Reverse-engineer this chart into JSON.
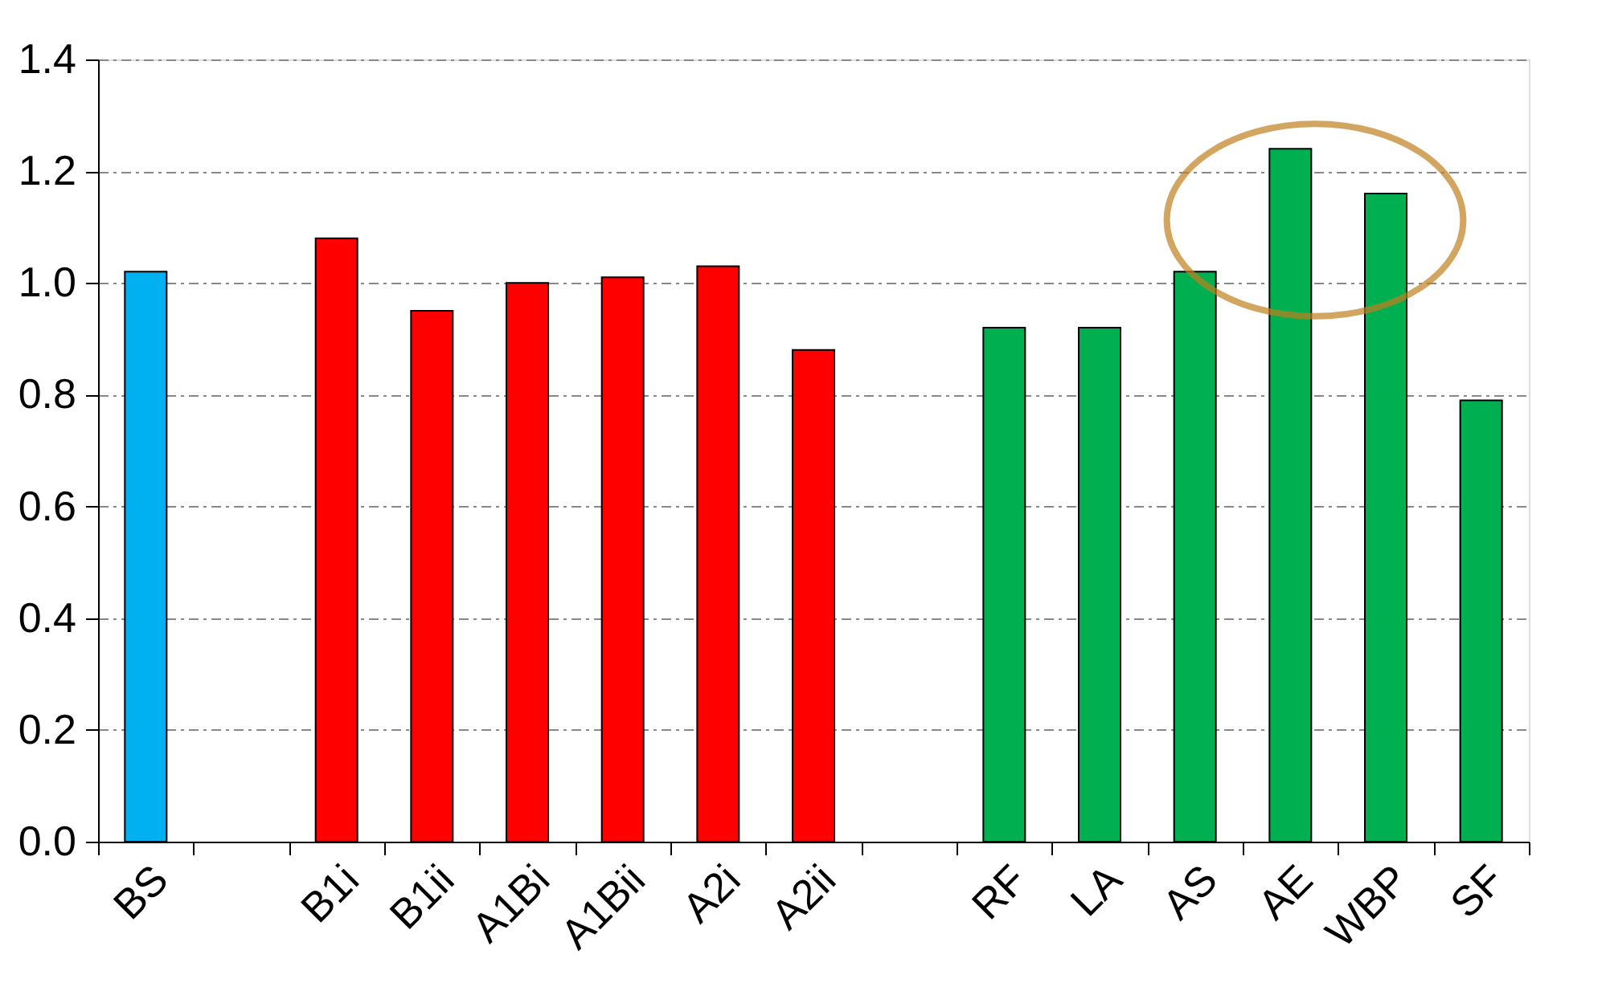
{
  "chart_data": {
    "type": "bar",
    "categories": [
      "BS",
      null,
      "B1i",
      "B1ii",
      "A1Bi",
      "A1Bii",
      "A2i",
      "A2ii",
      null,
      "RF",
      "LA",
      "AS",
      "AE",
      "WBP",
      "SF"
    ],
    "values": [
      1.02,
      null,
      1.08,
      0.95,
      1.0,
      1.01,
      1.03,
      0.88,
      null,
      0.92,
      0.92,
      1.02,
      1.24,
      1.16,
      0.79
    ],
    "colors": [
      "#00b0f0",
      null,
      "#ff0000",
      "#ff0000",
      "#ff0000",
      "#ff0000",
      "#ff0000",
      "#ff0000",
      null,
      "#00b050",
      "#00b050",
      "#00b050",
      "#00b050",
      "#00b050",
      "#00b050"
    ],
    "ylim": [
      0,
      1.4
    ],
    "yticks": [
      {
        "value": 0,
        "label": "0.0"
      },
      0.2,
      0.4,
      0.6,
      0.8,
      {
        "value": 1,
        "label": "1.0"
      },
      1.2,
      1.4
    ],
    "grid": "y"
  }
}
